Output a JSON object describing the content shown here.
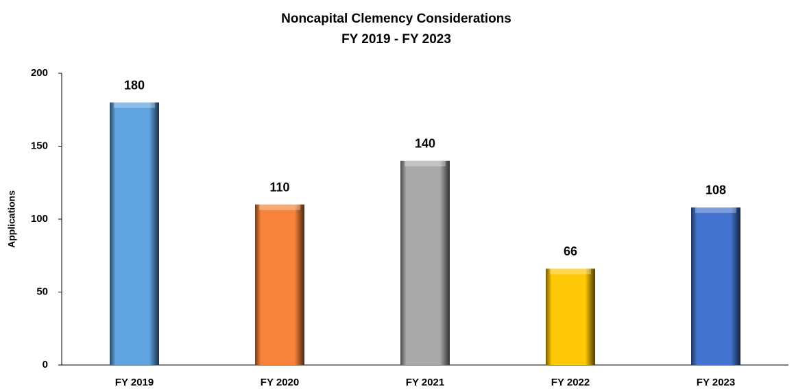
{
  "chart_data": {
    "type": "bar",
    "title": "Noncapital Clemency Considerations",
    "subtitle": "FY 2019 - FY 2023",
    "y_label": "Applications",
    "categories": [
      "FY 2019",
      "FY 2020",
      "FY 2021",
      "FY 2022",
      "FY 2023"
    ],
    "values": [
      180,
      110,
      140,
      66,
      108
    ],
    "colors": [
      "#5fa3e0",
      "#f7843a",
      "#a9a9a9",
      "#fec806",
      "#4474cf"
    ],
    "ylim": [
      0,
      200
    ],
    "yticks": [
      0,
      50,
      100,
      150,
      200
    ],
    "grid": false
  }
}
